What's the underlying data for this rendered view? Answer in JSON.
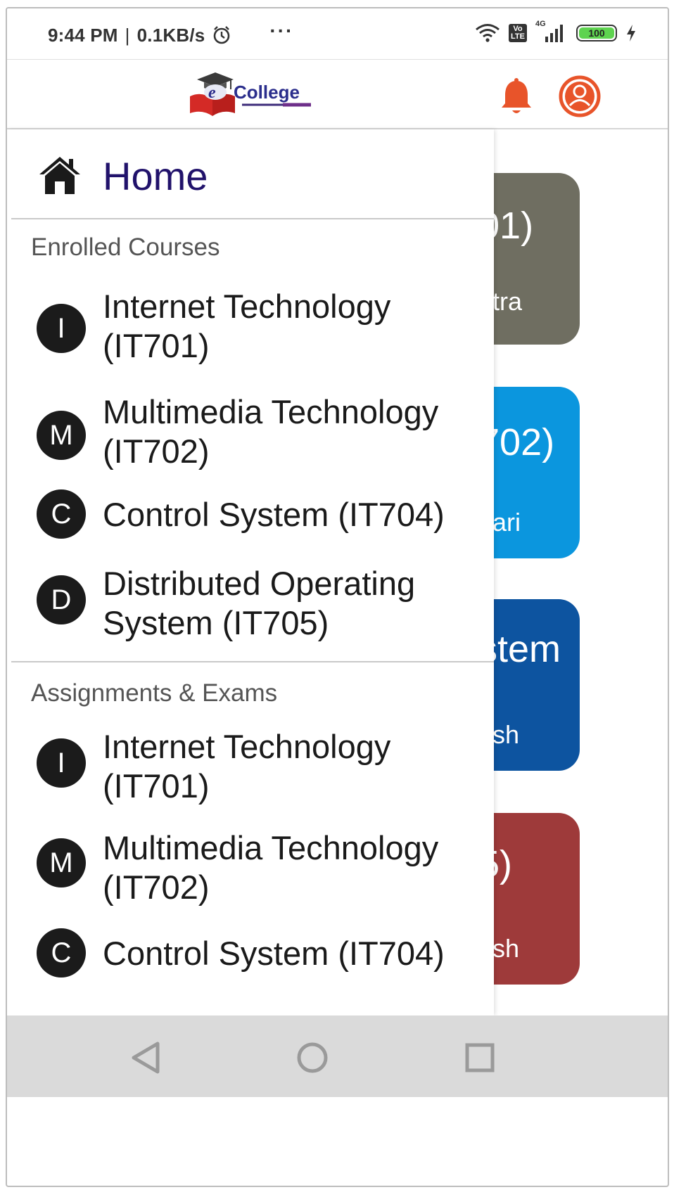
{
  "status_bar": {
    "time": "9:44 PM",
    "separator": "|",
    "speed": "0.1KB/s",
    "more": "···",
    "network": "4G",
    "volte": "Vo\nLTE",
    "battery": "100"
  },
  "app_bar": {
    "logo_text": "College",
    "logo_letter": "e"
  },
  "drawer": {
    "home_label": "Home",
    "enrolled_title": "Enrolled Courses",
    "enrolled": [
      {
        "initial": "I",
        "label": "Internet Technology (IT701)"
      },
      {
        "initial": "M",
        "label": "Multimedia Technology (IT702)"
      },
      {
        "initial": "C",
        "label": "Control System (IT704)"
      },
      {
        "initial": "D",
        "label": "Distributed Operating System (IT705)"
      }
    ],
    "assignments_title": "Assignments & Exams",
    "assignments": [
      {
        "initial": "I",
        "label": "Internet Technology (IT701)"
      },
      {
        "initial": "M",
        "label": "Multimedia Technology (IT702)"
      },
      {
        "initial": "C",
        "label": "Control System (IT704)"
      }
    ]
  },
  "background_cards": [
    {
      "code": "01)",
      "teacher": "atra",
      "color": "#6f6e61"
    },
    {
      "code": "702)",
      "teacher": "nari",
      "color": "#0b96de"
    },
    {
      "code": "stem",
      "teacher": "osh",
      "color": "#0d54a0"
    },
    {
      "code": "5)",
      "teacher": "osh",
      "color": "#9e3a3a"
    }
  ],
  "colors": {
    "accent": "#e8542a",
    "home_text": "#21126b",
    "avatar_bg": "#1b1b1b",
    "nav_bg": "#dadada"
  }
}
